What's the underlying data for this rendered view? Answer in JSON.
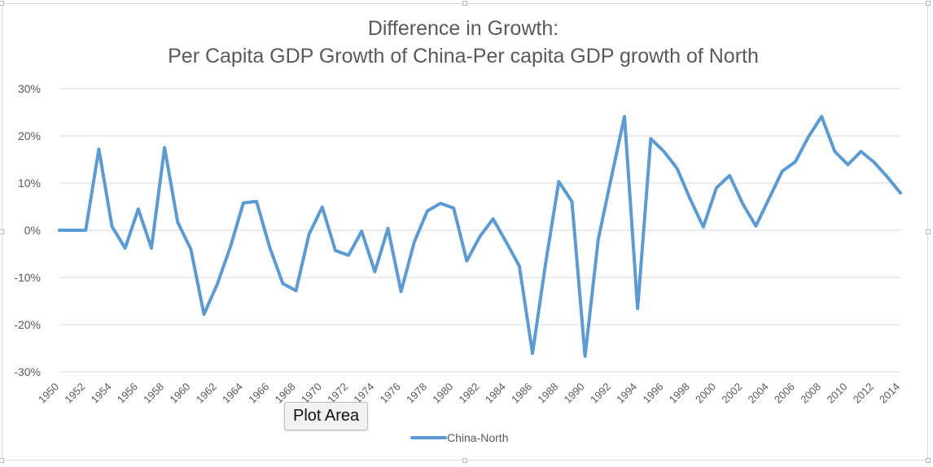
{
  "chart_data": {
    "type": "line",
    "title": [
      "Difference in Growth:",
      "Per Capita GDP Growth of China-Per capita GDP growth of North"
    ],
    "xlabel": "",
    "ylabel": "",
    "ylim": [
      -30,
      30
    ],
    "y_tick_step": 10,
    "y_format": "percent",
    "grid": true,
    "legend_position": "bottom",
    "x": [
      1950,
      1951,
      1952,
      1953,
      1954,
      1955,
      1956,
      1957,
      1958,
      1959,
      1960,
      1961,
      1962,
      1963,
      1964,
      1965,
      1966,
      1967,
      1968,
      1969,
      1970,
      1971,
      1972,
      1973,
      1974,
      1975,
      1976,
      1977,
      1978,
      1979,
      1980,
      1981,
      1982,
      1983,
      1984,
      1985,
      1986,
      1987,
      1988,
      1989,
      1990,
      1991,
      1992,
      1993,
      1994,
      1995,
      1996,
      1997,
      1998,
      1999,
      2000,
      2001,
      2002,
      2003,
      2004,
      2005,
      2006,
      2007,
      2008,
      2009,
      2010,
      2011,
      2012,
      2013,
      2014
    ],
    "x_tick_labels": [
      "1950",
      "1952",
      "1954",
      "1956",
      "1958",
      "1960",
      "1962",
      "1964",
      "1966",
      "1968",
      "1970",
      "1972",
      "1974",
      "1976",
      "1978",
      "1980",
      "1982",
      "1984",
      "1986",
      "1988",
      "1990",
      "1992",
      "1994",
      "1996",
      "1998",
      "2000",
      "2002",
      "2004",
      "2006",
      "2008",
      "2010",
      "2012",
      "2014"
    ],
    "series": [
      {
        "name": "China-North",
        "color": "#5b9bd5",
        "values": [
          0,
          0,
          0,
          17.2,
          0.8,
          -3.8,
          4.5,
          -3.8,
          17.5,
          1.7,
          -4.0,
          -17.8,
          -11.5,
          -3.6,
          5.8,
          6.1,
          -3.6,
          -11.3,
          -12.8,
          -0.8,
          4.9,
          -4.3,
          -5.3,
          -0.2,
          -8.8,
          0.4,
          -13.0,
          -2.5,
          4.1,
          5.7,
          4.7,
          -6.5,
          -1.3,
          2.4,
          -2.5,
          -7.6,
          -26.1,
          -7.0,
          10.3,
          6.1,
          -26.7,
          -2.0,
          11.2,
          24.1,
          -16.6,
          19.4,
          16.7,
          13.1,
          6.6,
          0.7,
          9.0,
          11.6,
          5.6,
          0.9,
          6.7,
          12.5,
          14.5,
          19.8,
          24.1,
          16.7,
          13.9,
          16.7,
          14.4,
          11.3,
          7.9
        ]
      }
    ]
  },
  "tooltip": {
    "label": "Plot Area"
  }
}
